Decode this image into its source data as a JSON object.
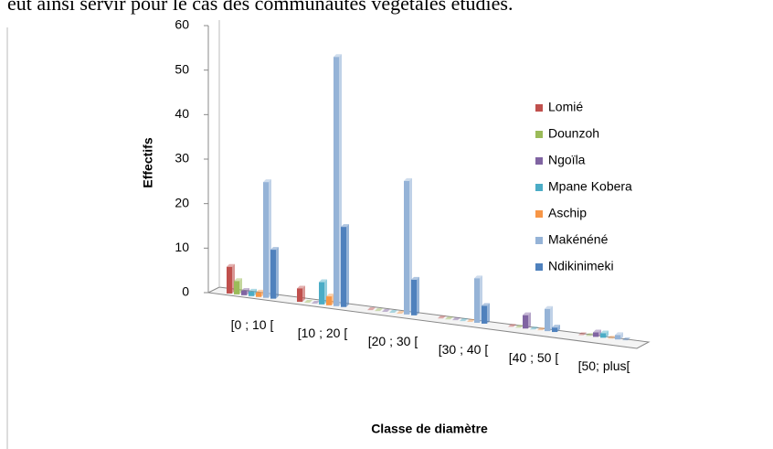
{
  "text_above": "eut ainsi servir pour le cas des communautés végétales étudiés.",
  "chart_data": {
    "type": "bar3d",
    "y_label": "Effectifs",
    "x_label": "Classe de diamètre",
    "categories": [
      "[0 ; 10 [",
      "[10 ; 20 [",
      "[20 ; 30 [",
      "[30 ; 40 [",
      "[40 ; 50 [",
      "[50; plus["
    ],
    "series": [
      {
        "name": "Lomié",
        "color": "#c0504d",
        "values": [
          6,
          3,
          0,
          0,
          0,
          0
        ]
      },
      {
        "name": "Dounzoh",
        "color": "#9bbb59",
        "values": [
          3,
          0,
          0,
          0,
          0,
          0
        ]
      },
      {
        "name": "Ngoïla",
        "color": "#8064a2",
        "values": [
          1,
          0,
          0,
          0,
          3,
          1
        ]
      },
      {
        "name": "Mpane Kobera",
        "color": "#4bacc6",
        "values": [
          1,
          5,
          0,
          0,
          0,
          1
        ]
      },
      {
        "name": "Aschip",
        "color": "#f79646",
        "values": [
          1,
          2,
          0,
          0,
          0,
          0
        ]
      },
      {
        "name": "Makénéné",
        "color": "#95b3d7",
        "values": [
          26,
          56,
          30,
          10,
          5,
          1
        ]
      },
      {
        "name": "Ndikinimeki",
        "color": "#4f81bd",
        "values": [
          11,
          18,
          8,
          4,
          1,
          0
        ]
      }
    ],
    "ylim": [
      0,
      60
    ],
    "yticks": [
      0,
      10,
      20,
      30,
      40,
      50,
      60
    ],
    "grid": false,
    "legend": "right"
  }
}
